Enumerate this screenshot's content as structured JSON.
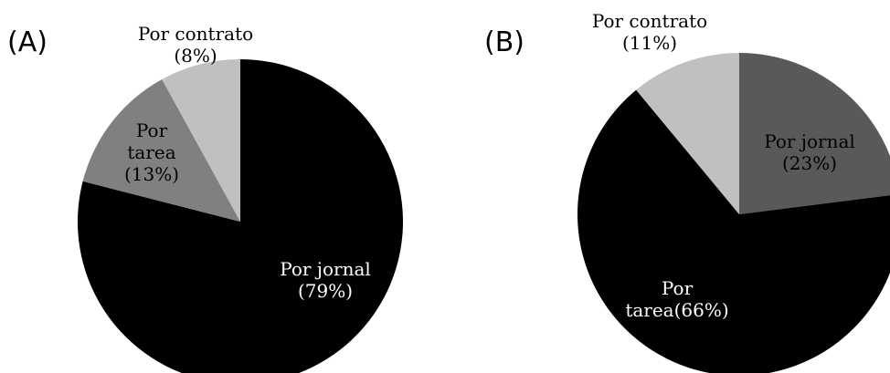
{
  "chart_data": [
    {
      "type": "pie",
      "panel": "(A)",
      "slices": [
        {
          "label_lines": [
            "Por jornal",
            "(79%)"
          ],
          "value": 79,
          "color": "#000000",
          "label_color": "#ffffff"
        },
        {
          "label_lines": [
            "Por",
            "tarea",
            "(13%)"
          ],
          "value": 13,
          "color": "#808080",
          "label_color": "#000000"
        },
        {
          "label_lines": [
            "Por contrato",
            "(8%)"
          ],
          "value": 8,
          "color": "#c0c0c0",
          "label_color": "#000000"
        }
      ]
    },
    {
      "type": "pie",
      "panel": "(B)",
      "slices": [
        {
          "label_lines": [
            "Por jornal",
            "(23%)"
          ],
          "value": 23,
          "color": "#595959",
          "label_color": "#000000"
        },
        {
          "label_lines": [
            "Por",
            "tarea(66%)"
          ],
          "value": 66,
          "color": "#000000",
          "label_color": "#ffffff"
        },
        {
          "label_lines": [
            "Por contrato",
            "(11%)"
          ],
          "value": 11,
          "color": "#c0c0c0",
          "label_color": "#000000"
        }
      ]
    }
  ]
}
